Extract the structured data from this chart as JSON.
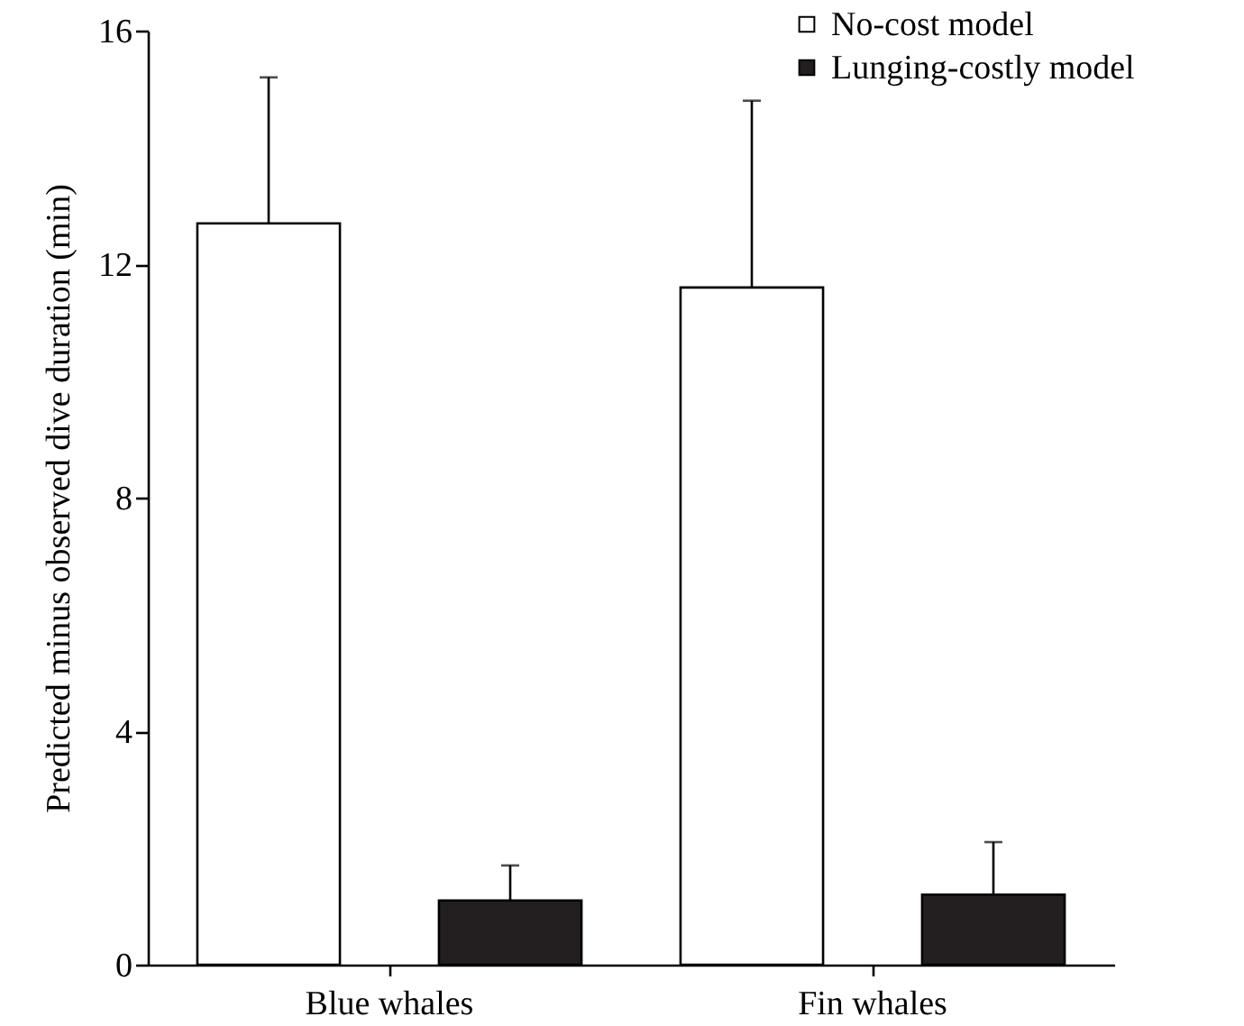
{
  "chart_data": {
    "type": "bar",
    "ylabel": "Predicted minus observed dive duration (min)",
    "categories": [
      "Blue whales",
      "Fin whales"
    ],
    "series": [
      {
        "name": "No-cost model",
        "color": "#ffffff",
        "values": [
          12.7,
          11.6
        ],
        "errors": [
          [
            12.7,
            15.2
          ],
          [
            11.6,
            14.8
          ]
        ]
      },
      {
        "name": "Lunging-costly model",
        "color": "#231f20",
        "values": [
          1.1,
          1.2
        ],
        "errors": [
          [
            1.1,
            1.7
          ],
          [
            1.2,
            2.1
          ]
        ]
      }
    ],
    "ylim": [
      0,
      16
    ],
    "yticks": [
      0,
      4,
      8,
      12,
      16
    ],
    "grid": false,
    "legend": "top right"
  }
}
